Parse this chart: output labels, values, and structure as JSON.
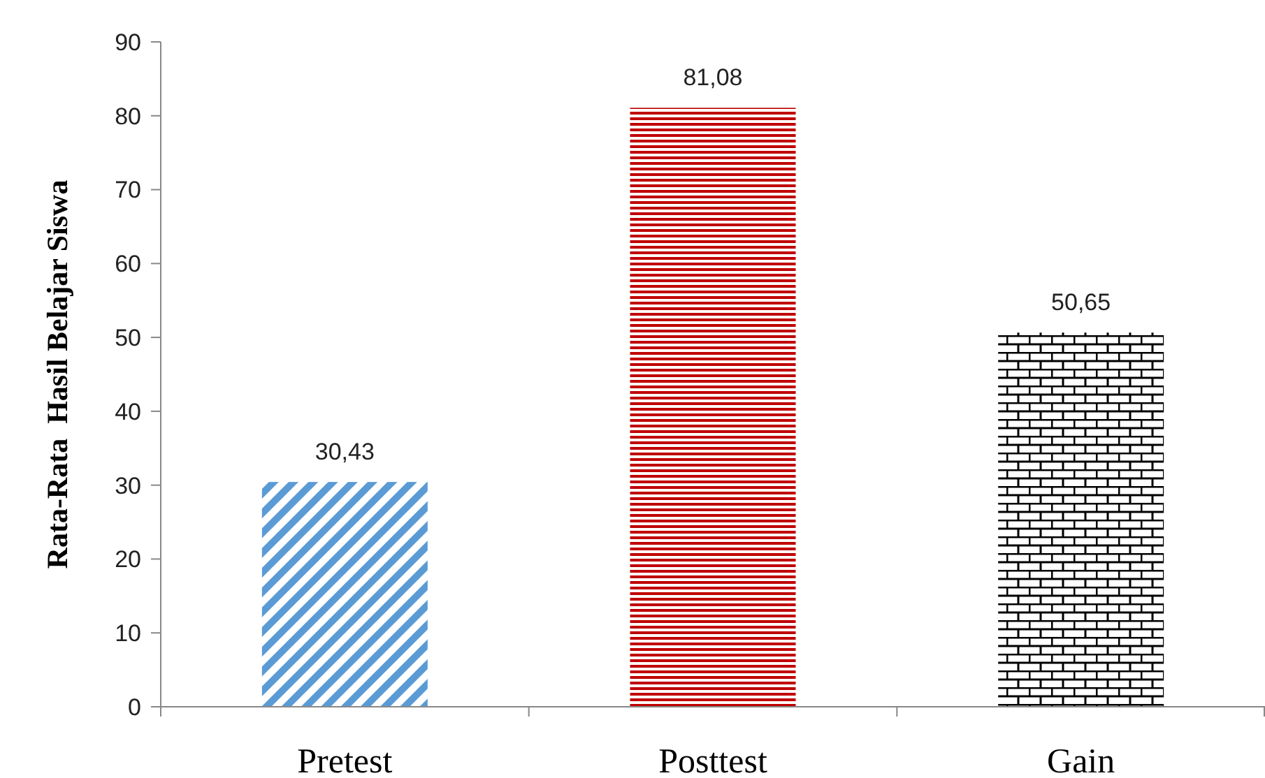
{
  "chart_data": {
    "type": "bar",
    "ylabel": "Rata-Rata  Hasil Belajar Siswa",
    "categories": [
      "Pretest",
      "Posttest",
      "Gain"
    ],
    "values": [
      30.43,
      81.08,
      50.65
    ],
    "colors": [
      "#5b9bd5",
      "#c00000",
      "#000000"
    ],
    "value_labels": [
      "30,43",
      "81,08",
      "50,65"
    ],
    "ylim": [
      0,
      90
    ],
    "yticks": [
      0,
      10,
      20,
      30,
      40,
      50,
      60,
      70,
      80,
      90
    ],
    "grid": false
  }
}
